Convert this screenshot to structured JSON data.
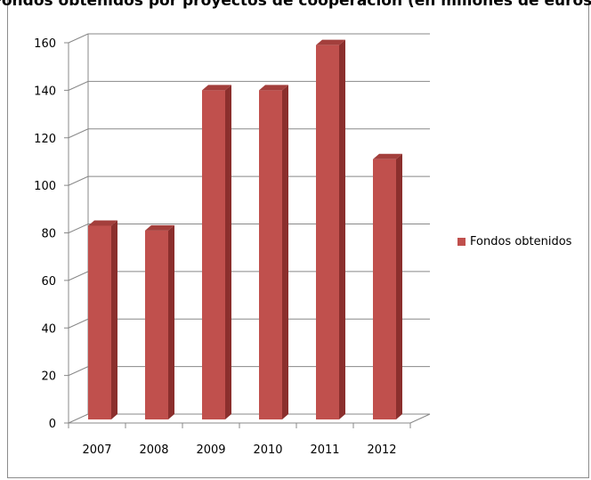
{
  "chart_data": {
    "type": "bar",
    "title": "Fondos obtenidos por proyectos de cooperación (en millones de euros)",
    "categories": [
      "2007",
      "2008",
      "2009",
      "2010",
      "2011",
      "2012"
    ],
    "series": [
      {
        "name": "Fondos obtenidos",
        "values": [
          83,
          81,
          140,
          140,
          159,
          111
        ]
      }
    ],
    "ylim": [
      0,
      160
    ],
    "yticks": [
      "0",
      "20",
      "40",
      "60",
      "80",
      "100",
      "120",
      "140",
      "160"
    ],
    "grid": true,
    "legend": "right",
    "colors": {
      "bar_front": "#c0504d",
      "bar_side": "#8b2f2d",
      "bar_top": "#a33f3c",
      "grid": "#888888"
    }
  }
}
